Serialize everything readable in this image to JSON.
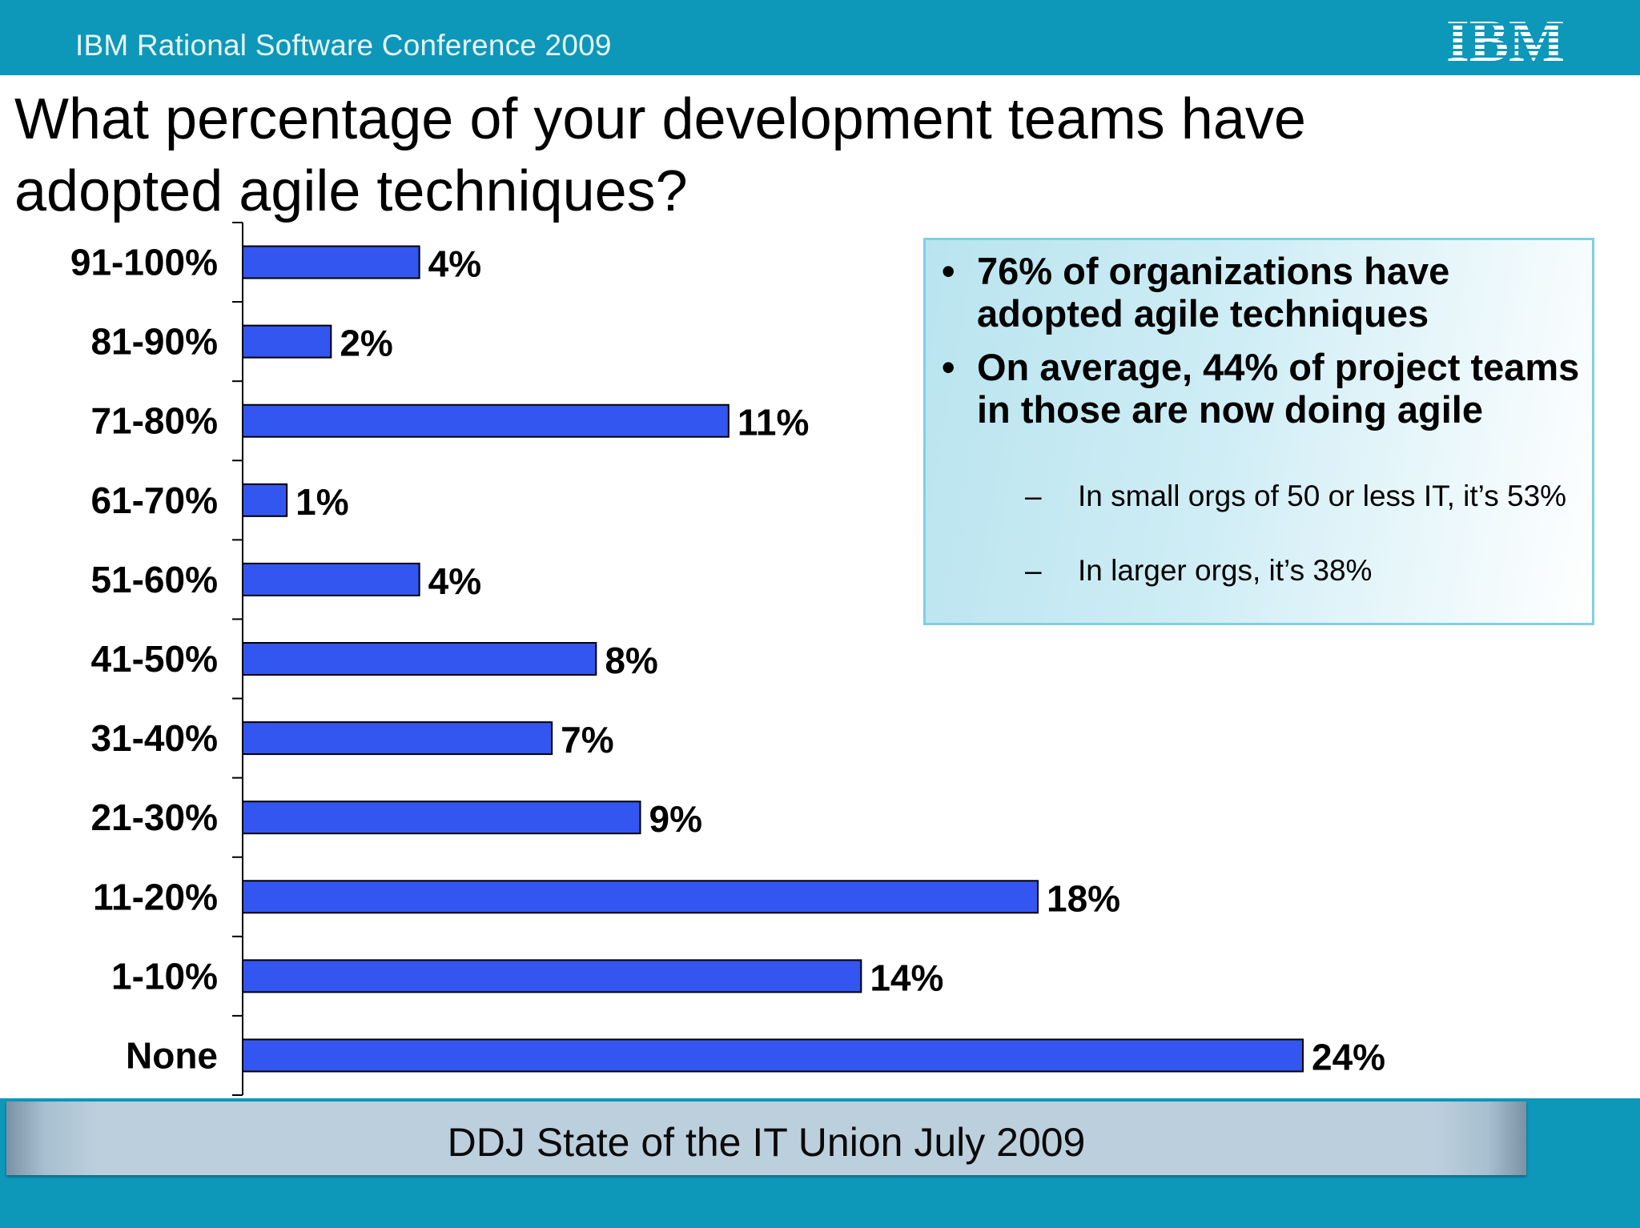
{
  "header": {
    "conference": "IBM Rational Software Conference 2009",
    "logo_text": "IBM"
  },
  "title": "What percentage of your development teams have adopted agile techniques?",
  "chart_data": {
    "type": "bar",
    "orientation": "horizontal",
    "categories": [
      "91-100%",
      "81-90%",
      "71-80%",
      "61-70%",
      "51-60%",
      "41-50%",
      "31-40%",
      "21-30%",
      "11-20%",
      "1-10%",
      "None"
    ],
    "values": [
      4,
      2,
      11,
      1,
      4,
      8,
      7,
      9,
      18,
      14,
      24
    ],
    "value_labels": [
      "4%",
      "2%",
      "11%",
      "1%",
      "4%",
      "8%",
      "7%",
      "9%",
      "18%",
      "14%",
      "24%"
    ],
    "xlim": [
      0,
      24
    ],
    "grid": false,
    "bar_color": "#3355f0"
  },
  "callout": {
    "bullets": [
      "76% of organizations have adopted agile techniques",
      "On average, 44% of project teams in those are now doing agile"
    ],
    "sub_bullets": [
      "In small orgs of 50 or less IT, it’s 53%",
      "In larger orgs, it’s 38%"
    ]
  },
  "source": "DDJ State of the IT Union July 2009",
  "colors": {
    "header": "#0d97b9",
    "bar": "#3355f0",
    "callout_border": "#7fd0e0"
  }
}
